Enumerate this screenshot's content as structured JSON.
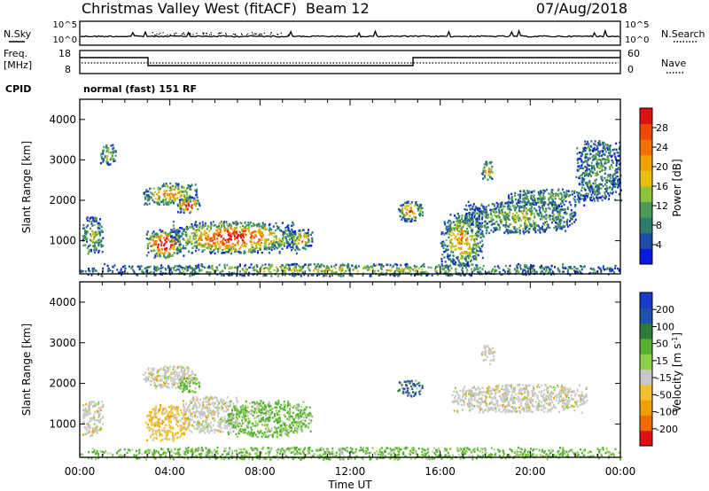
{
  "header": {
    "station": "Christmas Valley West (fitACF)",
    "beam": "Beam 12",
    "date": "07/Aug/2018"
  },
  "sky_panel": {
    "left_label": "N.Sky",
    "right_label": "N.Search",
    "left_ticks": [
      "10^5",
      "10^0"
    ],
    "right_ticks": [
      "10^5",
      "10^0"
    ]
  },
  "freq_panel": {
    "left_label_1": "Freq.",
    "left_label_2": "[MHz]",
    "left_ticks": [
      "18",
      "8"
    ],
    "right_label": "Nave",
    "right_ticks": [
      "60",
      "0"
    ]
  },
  "cpid": {
    "label": "CPID",
    "mode": "normal (fast) 151 RF"
  },
  "x_axis": {
    "label": "Time UT",
    "ticks": [
      "00:00",
      "04:00",
      "08:00",
      "12:00",
      "16:00",
      "20:00",
      "00:00"
    ]
  },
  "chart_data": [
    {
      "type": "heatmap",
      "title": "",
      "xlabel": "",
      "ylabel": "Slant Range [km]",
      "x_range_hours": [
        0,
        24
      ],
      "y_ticks": [
        1000,
        2000,
        3000,
        4000
      ],
      "colorbar": {
        "label": "Power [dB]",
        "ticks": [
          "4",
          "8",
          "12",
          "16",
          "20",
          "24",
          "28"
        ],
        "colors": [
          "#0a1adc",
          "#1e4aa8",
          "#2e7c6a",
          "#4a9a55",
          "#8ec23a",
          "#e8c000",
          "#f0a000",
          "#f07000",
          "#ee4a00",
          "#e01010"
        ]
      },
      "scatter_regions": [
        {
          "t0": 0.1,
          "t1": 1.0,
          "r0": 700,
          "r1": 1600,
          "hi": 0.3
        },
        {
          "t0": 0.9,
          "t1": 1.6,
          "r0": 2900,
          "r1": 3400,
          "hi": 0.3
        },
        {
          "t0": 2.8,
          "t1": 5.2,
          "r0": 1900,
          "r1": 2450,
          "hi": 0.5
        },
        {
          "t0": 4.3,
          "t1": 5.3,
          "r0": 1700,
          "r1": 2100,
          "hi": 0.9
        },
        {
          "t0": 2.9,
          "t1": 4.6,
          "r0": 600,
          "r1": 1300,
          "hi": 0.95
        },
        {
          "t0": 4.0,
          "t1": 9.6,
          "r0": 700,
          "r1": 1500,
          "hi": 0.8
        },
        {
          "t0": 9.3,
          "t1": 10.3,
          "r0": 800,
          "r1": 1300,
          "hi": 0.5
        },
        {
          "t0": 14.1,
          "t1": 15.2,
          "r0": 1500,
          "r1": 2000,
          "hi": 0.6
        },
        {
          "t0": 16.0,
          "t1": 17.9,
          "r0": 400,
          "r1": 1700,
          "hi": 0.5
        },
        {
          "t0": 17.0,
          "t1": 22.0,
          "r0": 1200,
          "r1": 2000,
          "hi": 0.25
        },
        {
          "t0": 19.0,
          "t1": 22.5,
          "r0": 1900,
          "r1": 2300,
          "hi": 0.2
        },
        {
          "t0": 17.8,
          "t1": 18.4,
          "r0": 2500,
          "r1": 3000,
          "hi": 0.5
        },
        {
          "t0": 22.0,
          "t1": 24.0,
          "r0": 2000,
          "r1": 3500,
          "hi": 0.15
        },
        {
          "t0": 0.0,
          "t1": 24.0,
          "r0": 150,
          "r1": 450,
          "hi": 0.3
        }
      ]
    },
    {
      "type": "heatmap",
      "title": "",
      "xlabel": "Time UT",
      "ylabel": "Slant Range [km]",
      "x_range_hours": [
        0,
        24
      ],
      "y_ticks": [
        1000,
        2000,
        3000,
        4000
      ],
      "colorbar": {
        "label": "Velocity [m s^-1]",
        "ticks": [
          "200",
          "100",
          "50",
          "15",
          "-15",
          "-50",
          "-100",
          "-200"
        ],
        "colors": [
          "#1a3ac8",
          "#2050a8",
          "#2e7c3a",
          "#54b030",
          "#8cd048",
          "#c8c8c8",
          "#f2c030",
          "#f0a000",
          "#f06a00",
          "#e01010"
        ]
      },
      "scatter_regions": [
        {
          "t0": 0.1,
          "t1": 1.0,
          "r0": 700,
          "r1": 1600,
          "kind": "grey"
        },
        {
          "t0": 2.8,
          "t1": 5.2,
          "r0": 1900,
          "r1": 2450,
          "kind": "grey"
        },
        {
          "t0": 4.3,
          "t1": 5.3,
          "r0": 1800,
          "r1": 2200,
          "kind": "green"
        },
        {
          "t0": 2.9,
          "t1": 4.8,
          "r0": 600,
          "r1": 1500,
          "kind": "orange"
        },
        {
          "t0": 4.5,
          "t1": 7.0,
          "r0": 800,
          "r1": 1700,
          "kind": "grey"
        },
        {
          "t0": 6.5,
          "t1": 10.3,
          "r0": 700,
          "r1": 1600,
          "kind": "green"
        },
        {
          "t0": 14.1,
          "t1": 15.2,
          "r0": 1700,
          "r1": 2100,
          "kind": "blue"
        },
        {
          "t0": 16.5,
          "t1": 22.5,
          "r0": 1300,
          "r1": 2000,
          "kind": "grey"
        },
        {
          "t0": 17.8,
          "t1": 18.4,
          "r0": 2500,
          "r1": 3000,
          "kind": "grey"
        },
        {
          "t0": 0.0,
          "t1": 24.0,
          "r0": 150,
          "r1": 450,
          "kind": "green"
        }
      ]
    }
  ]
}
